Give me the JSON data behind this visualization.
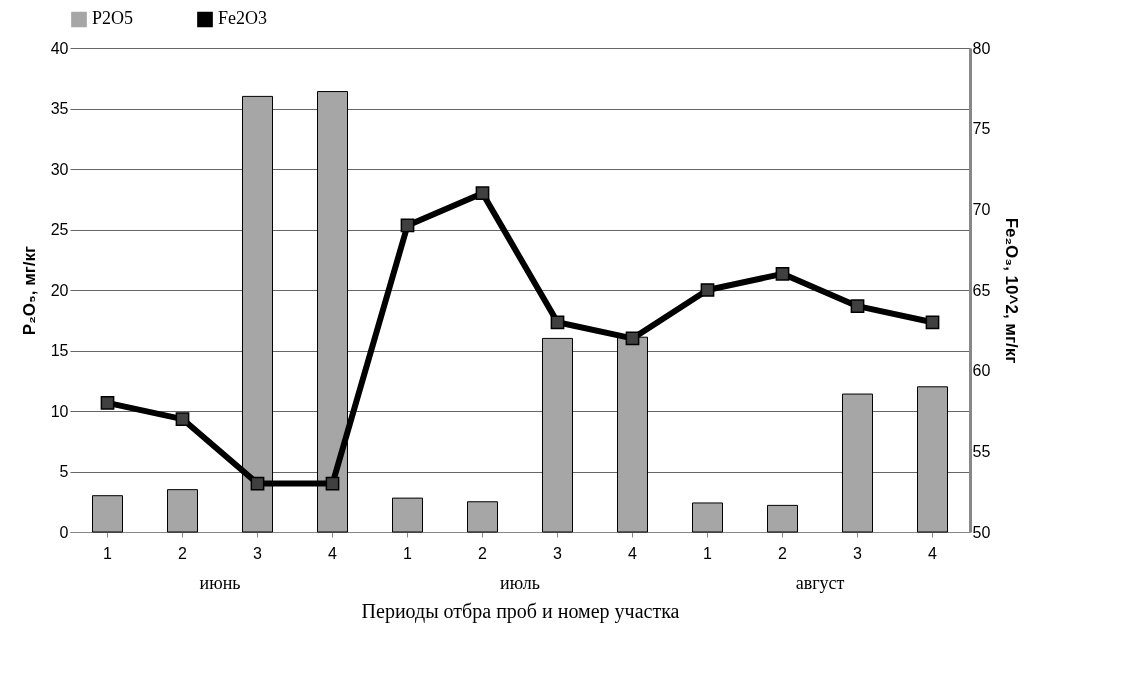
{
  "chart_data": {
    "type": "bar",
    "xlabel": "Периоды отбра проб и номер участка",
    "ylabel": "P₂O₅, мг/кг",
    "y2label": "Fe₂O₃, 10^2, мг/кг",
    "categories": [
      "1",
      "2",
      "3",
      "4",
      "1",
      "2",
      "3",
      "4",
      "1",
      "2",
      "3",
      "4"
    ],
    "series": [
      {
        "name": "P2O5",
        "color": "#a6a6a6",
        "values": [
          3.0,
          3.5,
          36.0,
          36.4,
          2.8,
          2.5,
          16.0,
          16.1,
          2.4,
          2.2,
          11.4,
          12.0
        ]
      },
      {
        "name": "Fe2O3",
        "type": "line",
        "axis": "y2",
        "color": "#000000",
        "values": [
          58,
          57,
          53,
          53,
          69,
          71,
          63,
          62,
          65,
          66,
          64,
          63
        ]
      }
    ],
    "ylim": [
      0,
      40
    ],
    "yticks": [
      0,
      5,
      10,
      15,
      20,
      25,
      30,
      35,
      40
    ],
    "y2lim": [
      50,
      80
    ],
    "y2ticks": [
      50,
      55,
      60,
      65,
      70,
      75,
      80
    ],
    "grid": "y",
    "legend": "top",
    "marker": "square",
    "line_style": "solid",
    "annotations": [
      "июнь",
      "июль",
      "август"
    ]
  }
}
